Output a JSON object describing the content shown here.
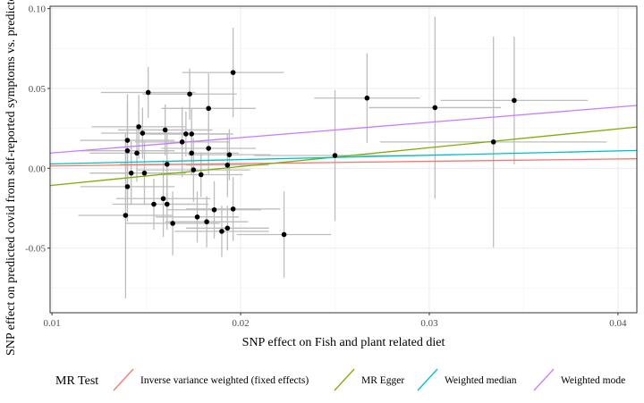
{
  "chart_data": {
    "type": "scatter",
    "xlabel": "SNP effect on Fish and plant related diet",
    "ylabel": "SNP effect on predicted covid from self-reported symptoms vs. predicted or se",
    "xlim": [
      0.0099,
      0.041
    ],
    "ylim": [
      -0.0905,
      0.1015
    ],
    "x_ticks": [
      "0.01",
      "0.02",
      "0.03",
      "0.04"
    ],
    "y_ticks": [
      "-0.05",
      "0.00",
      "0.05",
      "0.10"
    ],
    "x_tick_values": [
      0.01,
      0.02,
      0.03,
      0.04
    ],
    "y_tick_values": [
      -0.05,
      0.0,
      0.05,
      0.1
    ],
    "grid": true,
    "point_color": "#000000",
    "errorbar_color": "#bdbdbd",
    "points": [
      {
        "x": 0.0151,
        "y": 0.0475,
        "xerr": 0.0025,
        "yerr": 0.016
      },
      {
        "x": 0.0173,
        "y": 0.0465,
        "xerr": 0.0025,
        "yerr": 0.016
      },
      {
        "x": 0.0196,
        "y": 0.06,
        "xerr": 0.0027,
        "yerr": 0.028
      },
      {
        "x": 0.0183,
        "y": 0.0375,
        "xerr": 0.0025,
        "yerr": 0.022
      },
      {
        "x": 0.0146,
        "y": 0.026,
        "xerr": 0.0025,
        "yerr": 0.02
      },
      {
        "x": 0.014,
        "y": 0.0175,
        "xerr": 0.0025,
        "yerr": 0.029
      },
      {
        "x": 0.0148,
        "y": 0.022,
        "xerr": 0.0022,
        "yerr": 0.016
      },
      {
        "x": 0.016,
        "y": 0.024,
        "xerr": 0.0025,
        "yerr": 0.016
      },
      {
        "x": 0.0171,
        "y": 0.0215,
        "xerr": 0.0022,
        "yerr": 0.014
      },
      {
        "x": 0.0174,
        "y": 0.0215,
        "xerr": 0.0022,
        "yerr": 0.016
      },
      {
        "x": 0.0169,
        "y": 0.0165,
        "xerr": 0.0025,
        "yerr": 0.022
      },
      {
        "x": 0.0183,
        "y": 0.0125,
        "xerr": 0.0025,
        "yerr": 0.016
      },
      {
        "x": 0.014,
        "y": 0.011,
        "xerr": 0.0025,
        "yerr": 0.03
      },
      {
        "x": 0.0145,
        "y": 0.0095,
        "xerr": 0.0025,
        "yerr": 0.018
      },
      {
        "x": 0.0174,
        "y": 0.0095,
        "xerr": 0.0025,
        "yerr": 0.014
      },
      {
        "x": 0.0194,
        "y": 0.0085,
        "xerr": 0.0022,
        "yerr": 0.016
      },
      {
        "x": 0.0161,
        "y": 0.0025,
        "xerr": 0.0025,
        "yerr": 0.022
      },
      {
        "x": 0.0193,
        "y": 0.002,
        "xerr": 0.0022,
        "yerr": 0.02
      },
      {
        "x": 0.0175,
        "y": -0.001,
        "xerr": 0.003,
        "yerr": 0.02
      },
      {
        "x": 0.0142,
        "y": -0.003,
        "xerr": 0.0022,
        "yerr": 0.02
      },
      {
        "x": 0.0149,
        "y": -0.003,
        "xerr": 0.0022,
        "yerr": 0.02
      },
      {
        "x": 0.0179,
        "y": -0.004,
        "xerr": 0.0022,
        "yerr": 0.014
      },
      {
        "x": 0.014,
        "y": -0.0115,
        "xerr": 0.0025,
        "yerr": 0.022
      },
      {
        "x": 0.0159,
        "y": -0.019,
        "xerr": 0.0025,
        "yerr": 0.024
      },
      {
        "x": 0.0154,
        "y": -0.0225,
        "xerr": 0.0022,
        "yerr": 0.016
      },
      {
        "x": 0.0161,
        "y": -0.0225,
        "xerr": 0.0022,
        "yerr": 0.016
      },
      {
        "x": 0.0196,
        "y": -0.0255,
        "xerr": 0.0025,
        "yerr": 0.02
      },
      {
        "x": 0.0186,
        "y": -0.026,
        "xerr": 0.0025,
        "yerr": 0.018
      },
      {
        "x": 0.0139,
        "y": -0.0295,
        "xerr": 0.0025,
        "yerr": 0.052
      },
      {
        "x": 0.0177,
        "y": -0.0305,
        "xerr": 0.0022,
        "yerr": 0.016
      },
      {
        "x": 0.0182,
        "y": -0.0335,
        "xerr": 0.0022,
        "yerr": 0.016
      },
      {
        "x": 0.0164,
        "y": -0.0345,
        "xerr": 0.0025,
        "yerr": 0.02
      },
      {
        "x": 0.0193,
        "y": -0.0375,
        "xerr": 0.0022,
        "yerr": 0.014
      },
      {
        "x": 0.019,
        "y": -0.0395,
        "xerr": 0.0025,
        "yerr": 0.016
      },
      {
        "x": 0.0223,
        "y": -0.0415,
        "xerr": 0.0025,
        "yerr": 0.027
      },
      {
        "x": 0.025,
        "y": 0.008,
        "xerr": 0.0043,
        "yerr": 0.041
      },
      {
        "x": 0.0267,
        "y": 0.044,
        "xerr": 0.0028,
        "yerr": 0.028
      },
      {
        "x": 0.0303,
        "y": 0.038,
        "xerr": 0.0035,
        "yerr": 0.057
      },
      {
        "x": 0.0334,
        "y": 0.0165,
        "xerr": 0.006,
        "yerr": 0.066
      },
      {
        "x": 0.0345,
        "y": 0.0425,
        "xerr": 0.0039,
        "yerr": 0.04
      }
    ],
    "lines": [
      {
        "name": "Inverse variance weighted (fixed effects)",
        "color": "#F8766D",
        "intercept": 0,
        "slope": 0.145
      },
      {
        "name": "MR Egger",
        "color": "#7CAE00",
        "intercept": -0.0225,
        "slope": 1.18
      },
      {
        "name": "Weighted median",
        "color": "#00BFC4",
        "intercept": 0,
        "slope": 0.272
      },
      {
        "name": "Weighted mode",
        "color": "#C77CFF",
        "intercept": 0,
        "slope": 0.96
      }
    ],
    "legend": {
      "title": "MR Test",
      "position": "bottom"
    }
  }
}
